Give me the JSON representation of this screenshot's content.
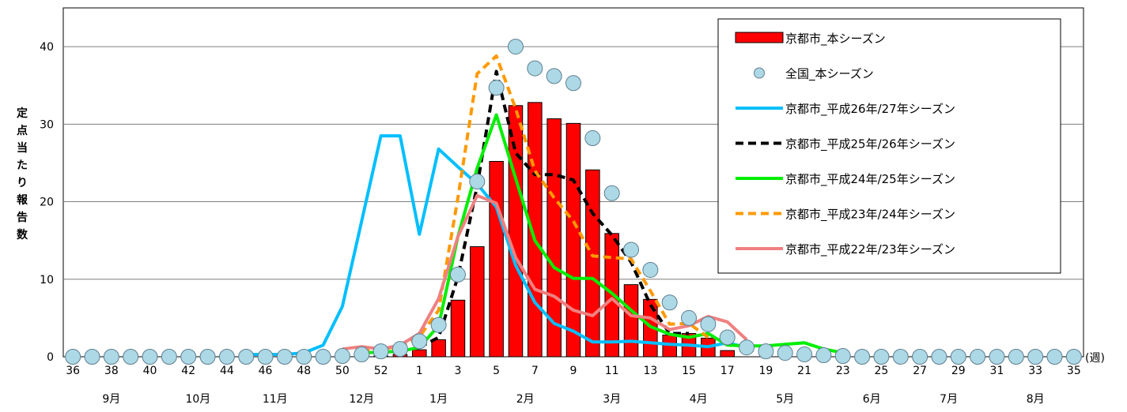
{
  "chart_data": {
    "type": "bar",
    "title": "",
    "xlabel": "",
    "ylabel": "定点当たり報告数",
    "xunit": "(週)",
    "ylim": [
      0,
      45
    ],
    "yticks": [
      0,
      10,
      20,
      30,
      40
    ],
    "grid": true,
    "legend_position": "top-right",
    "x": [
      "36",
      "37",
      "38",
      "39",
      "40",
      "41",
      "42",
      "43",
      "44",
      "45",
      "46",
      "47",
      "48",
      "49",
      "50",
      "51",
      "52",
      "53",
      "1",
      "2",
      "3",
      "4",
      "5",
      "6",
      "7",
      "8",
      "9",
      "10",
      "11",
      "12",
      "13",
      "14",
      "15",
      "16",
      "17",
      "18",
      "19",
      "20",
      "21",
      "22",
      "23",
      "24",
      "25",
      "26",
      "27",
      "28",
      "29",
      "30",
      "31",
      "32",
      "33",
      "34",
      "35"
    ],
    "x_tick_labels": [
      "36",
      "38",
      "40",
      "42",
      "44",
      "46",
      "48",
      "50",
      "52",
      "1",
      "3",
      "5",
      "7",
      "9",
      "11",
      "13",
      "15",
      "17",
      "19",
      "21",
      "23",
      "25",
      "27",
      "29",
      "31",
      "33",
      "35"
    ],
    "months": [
      {
        "label": "9月",
        "at": 38
      },
      {
        "label": "10月",
        "at": 42.5
      },
      {
        "label": "11月",
        "at": 46.5
      },
      {
        "label": "12月",
        "at": 51
      },
      {
        "label": "1月",
        "at": "2"
      },
      {
        "label": "2月",
        "at": "6.5"
      },
      {
        "label": "3月",
        "at": "11"
      },
      {
        "label": "4月",
        "at": "15.5"
      },
      {
        "label": "5月",
        "at": "20"
      },
      {
        "label": "6月",
        "at": "24.5"
      },
      {
        "label": "7月",
        "at": "28.5"
      },
      {
        "label": "8月",
        "at": "33"
      }
    ],
    "series": [
      {
        "name": "京都市_本シーズン",
        "kind": "bar",
        "color": "#ff0000",
        "values": [
          0,
          0,
          0,
          0,
          0,
          0,
          0,
          0,
          0,
          0,
          0,
          0,
          0,
          0,
          0,
          0,
          0.1,
          0.3,
          0.9,
          2.2,
          7.3,
          14.2,
          25.2,
          32.4,
          32.8,
          30.7,
          30.1,
          24.1,
          15.9,
          9.3,
          7.4,
          2.8,
          3.0,
          2.4,
          0.8,
          null,
          null,
          null,
          null,
          null,
          null,
          null,
          null,
          null,
          null,
          null,
          null,
          null,
          null,
          null,
          null,
          null,
          null
        ]
      },
      {
        "name": "全国_本シーズン",
        "kind": "scatter",
        "color": "#add8e6",
        "values": [
          0,
          0,
          0,
          0,
          0,
          0,
          0,
          0,
          0,
          0,
          0,
          0,
          0,
          0,
          0.1,
          0.3,
          0.7,
          1.0,
          2.0,
          4.1,
          10.6,
          22.6,
          34.7,
          40.0,
          37.2,
          36.2,
          35.3,
          28.2,
          21.1,
          13.8,
          11.2,
          7.0,
          5.0,
          4.2,
          2.5,
          1.2,
          0.7,
          0.5,
          0.3,
          0.2,
          0.1,
          0,
          0,
          0,
          0,
          0,
          0,
          0,
          0,
          0,
          0,
          0,
          0
        ]
      },
      {
        "name": "京都市_平成26年/27年シーズン",
        "kind": "line",
        "color": "#00bfff",
        "dash": "",
        "values": [
          null,
          null,
          null,
          null,
          null,
          null,
          null,
          null,
          null,
          0.3,
          0.3,
          0.3,
          0.5,
          1.5,
          6.5,
          17.5,
          28.5,
          28.5,
          15.8,
          26.8,
          24.5,
          22.3,
          19.3,
          11.8,
          7.0,
          4.3,
          3.3,
          1.9,
          1.9,
          2.0,
          1.8,
          1.6,
          1.5,
          1.3,
          1.8,
          1.2,
          null,
          null,
          null,
          null,
          null,
          null,
          null,
          null,
          null,
          null,
          null,
          null,
          null,
          null,
          null,
          null,
          null
        ]
      },
      {
        "name": "京都市_平成25年/26年シーズン",
        "kind": "line",
        "color": "#000000",
        "dash": "10,6",
        "values": [
          null,
          null,
          null,
          null,
          null,
          null,
          null,
          null,
          null,
          null,
          null,
          null,
          null,
          null,
          null,
          null,
          null,
          null,
          1.2,
          2.5,
          10.3,
          22.0,
          36.8,
          26.3,
          23.5,
          23.5,
          22.8,
          18.5,
          15.7,
          12.2,
          6.7,
          3.0,
          3.0,
          null,
          null,
          null,
          null,
          null,
          null,
          null,
          null,
          null,
          null,
          null,
          null,
          null,
          null,
          null,
          null,
          null,
          null,
          null,
          null
        ]
      },
      {
        "name": "京都市_平成24年/25年シーズン",
        "kind": "line",
        "color": "#00ee00",
        "dash": "",
        "values": [
          null,
          null,
          null,
          null,
          null,
          null,
          null,
          null,
          null,
          null,
          null,
          null,
          null,
          null,
          null,
          0.5,
          0.6,
          0.7,
          1.2,
          4.0,
          15.5,
          24.3,
          31.2,
          23.0,
          15.0,
          11.5,
          10.1,
          10.1,
          8.2,
          6.0,
          3.9,
          2.9,
          2.5,
          3.0,
          1.5,
          1.4,
          1.4,
          1.6,
          1.8,
          1.0,
          0.5,
          null,
          null,
          null,
          null,
          null,
          null,
          null,
          null,
          null,
          null,
          null,
          null
        ]
      },
      {
        "name": "京都市_平成23年/24年シーズン",
        "kind": "line",
        "color": "#ff9900",
        "dash": "10,6",
        "values": [
          null,
          null,
          null,
          null,
          null,
          null,
          null,
          null,
          null,
          null,
          null,
          null,
          null,
          null,
          null,
          0.8,
          1.0,
          1.3,
          2.6,
          6.0,
          20.5,
          36.5,
          38.8,
          32.0,
          24.0,
          20.5,
          17.5,
          13.0,
          12.8,
          12.6,
          8.5,
          4.2,
          4.3,
          2.5,
          null,
          null,
          null,
          null,
          null,
          null,
          null,
          null,
          null,
          null,
          null,
          null,
          null,
          null,
          null,
          null,
          null,
          null,
          null
        ]
      },
      {
        "name": "京都市_平成22年/23年シーズン",
        "kind": "line",
        "color": "#f08080",
        "dash": "",
        "values": [
          null,
          null,
          null,
          null,
          null,
          null,
          null,
          null,
          null,
          null,
          null,
          null,
          null,
          null,
          1.0,
          1.3,
          1.0,
          1.5,
          3.0,
          7.5,
          15.5,
          20.8,
          19.8,
          12.8,
          8.7,
          7.8,
          6.0,
          5.3,
          7.5,
          5.3,
          5.0,
          3.5,
          4.0,
          5.2,
          4.5,
          2.2,
          null,
          null,
          null,
          null,
          null,
          null,
          null,
          null,
          null,
          null,
          null,
          null,
          null,
          null,
          null,
          null,
          null
        ]
      }
    ]
  }
}
